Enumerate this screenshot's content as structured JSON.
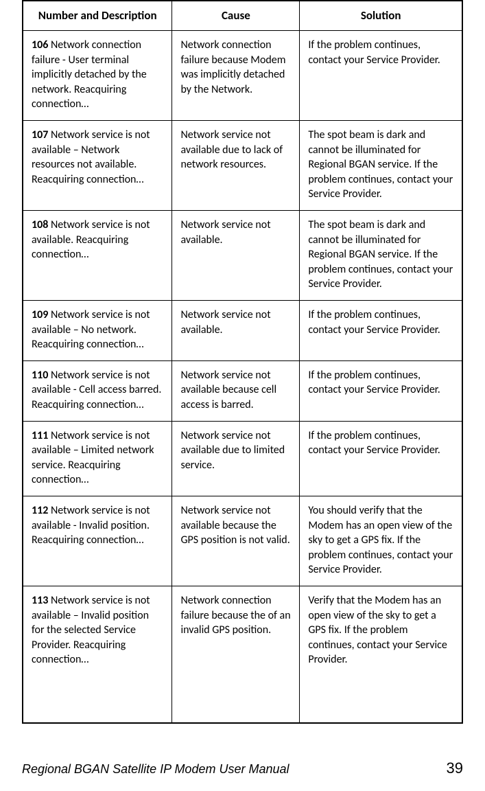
{
  "columns": {
    "desc": "Number and Description",
    "cause": "Cause",
    "solution": "Solution"
  },
  "rows": [
    {
      "num": "106",
      "desc": " Network connection failure - User terminal implicitly detached by the network. Reacquiring connection…",
      "cause": "Network connection failure because Modem was implicitly detached by the Network.",
      "solution": "If the problem continues, contact your Service Provider."
    },
    {
      "num": "107",
      "desc": " Network service is not available – Network resources not available. Reacquiring connection…",
      "cause": "Network service not available due to lack of network resources.",
      "solution": "The spot beam is dark and cannot be illuminated for Regional BGAN service. If the problem continues, contact your Service Provider."
    },
    {
      "num": "108",
      "desc": " Network service is not available. Reacquiring connection…",
      "cause": "Network service not available.",
      "solution": "The spot beam is dark and cannot be illuminated for Regional BGAN service. If the problem continues, contact your Service Provider."
    },
    {
      "num": "109",
      "desc": " Network service is not available – No network. Reacquiring connection…",
      "cause": "Network service not available.",
      "solution": "If the problem continues, contact your Service Provider."
    },
    {
      "num": "110",
      "desc": " Network service is not available - Cell access barred. Reacquiring connection…",
      "cause": "Network service not available because cell access is barred.",
      "solution": "If the problem continues, contact your Service Provider."
    },
    {
      "num": "111",
      "desc": " Network service is not available – Limited network service. Reacquiring connection…",
      "cause": "Network service not available due to limited service.",
      "solution": "If the problem continues, contact your Service Provider."
    },
    {
      "num": "112",
      "desc": " Network service is not available - Invalid position. Reacquiring connection…",
      "cause": "Network service not available because the GPS position is not valid.",
      "solution": "You should verify that the Modem has an open view of the sky to get a GPS fix. If the problem continues, contact your Service Provider."
    },
    {
      "num": "113",
      "desc": " Network service is not available – Invalid position for the selected Service Provider. Reacquiring connection…",
      "cause": "Network connection failure because the of an invalid GPS position.",
      "solution": "Verify that the Modem has an open view of the sky to get a GPS fix. If the problem continues, contact your Service Provider."
    }
  ],
  "lastRowExtraHeight": "80px",
  "footer": {
    "title": "Regional BGAN Satellite IP Modem User Manual",
    "page": "39"
  },
  "style": {
    "background": "#ffffff",
    "text_color": "#000000",
    "border_color": "#000000",
    "header_fontsize": 17,
    "cell_fontsize": 16,
    "footer_title_fontsize": 18,
    "footer_page_fontsize": 22
  }
}
